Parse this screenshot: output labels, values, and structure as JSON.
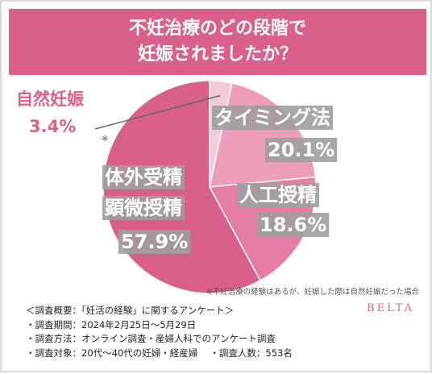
{
  "title": {
    "line1": "不妊治療のどの段階で",
    "line2": "妊娠されましたか？"
  },
  "colors": {
    "accent": "#d9608b",
    "slice_natural": "#f4c9d8",
    "slice_timing": "#eb9dba",
    "slice_artificial": "#e47ea5",
    "slice_ivf": "#d9608b",
    "label_box": "#9e9e9e"
  },
  "chart_data": {
    "type": "pie",
    "start": "top, clockwise",
    "slices": [
      {
        "label": "自然妊娠",
        "value": 3.4,
        "display": "3.4%"
      },
      {
        "label": "タイミング法",
        "value": 20.1,
        "display": "20.1%"
      },
      {
        "label": "人工授精",
        "value": 18.6,
        "display": "18.6%"
      },
      {
        "label": "体外受精\n顕微授精",
        "value": 57.9,
        "display": "57.9%"
      }
    ]
  },
  "labels": {
    "natural_name": "自然妊娠",
    "natural_pct": "3.4%",
    "natural_mark": "※",
    "timing_name": "タイミング法",
    "timing_pct": "20.1%",
    "artificial_name": "人工授精",
    "artificial_pct": "18.6%",
    "ivf_line1": "体外受精",
    "ivf_line2": "顕微授精",
    "ivf_pct": "57.9%"
  },
  "note": "※不妊治療の経験はあるが、妊娠した際は自然妊娠だった場合",
  "brand": "BELTA",
  "survey": {
    "line1": "＜調査概要：「妊活の経験」に関するアンケート＞",
    "line2": "・調査期間：2024年2月25日〜5月29日",
    "line3": "・調査方法：オンライン調査・産婦人科でのアンケート調査",
    "line4": "・調査対象：20代〜40代の妊婦・経産婦　 ・調査人数：553名"
  }
}
